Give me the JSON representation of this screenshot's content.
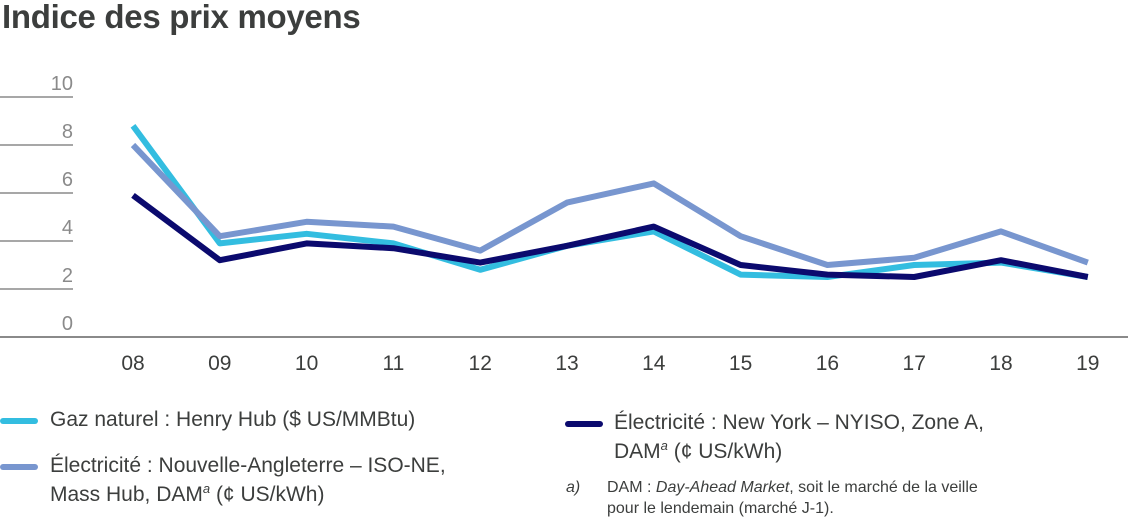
{
  "header": {
    "title": "Indice des prix moyens"
  },
  "chart_data": {
    "type": "line",
    "title": "Indice des prix moyens",
    "xlabel": "",
    "ylabel": "",
    "categories": [
      "08",
      "09",
      "10",
      "11",
      "12",
      "13",
      "14",
      "15",
      "16",
      "17",
      "18",
      "19"
    ],
    "yticks": [
      "0",
      "2",
      "4",
      "6",
      "8",
      "10"
    ],
    "ylim": [
      0,
      10
    ],
    "grid": true,
    "legend_position": "bottom",
    "series": [
      {
        "name": "Gaz naturel : Henry Hub ($ US/MMBtu)",
        "color": "#33bde0",
        "values": [
          8.8,
          3.9,
          4.3,
          3.9,
          2.8,
          3.8,
          4.4,
          2.6,
          2.5,
          3.0,
          3.1,
          2.5
        ]
      },
      {
        "name": "Électricité : Nouvelle-Angleterre – ISO-NE, Mass Hub, DAMa (¢ US/kWh)",
        "color": "#7896cf",
        "values": [
          8.0,
          4.2,
          4.8,
          4.6,
          3.6,
          5.6,
          6.4,
          4.2,
          3.0,
          3.3,
          4.4,
          3.1
        ]
      },
      {
        "name": "Électricité : New York – NYISO, Zone A, DAMa (¢ US/kWh)",
        "color": "#0b0a6e",
        "values": [
          5.9,
          3.2,
          3.9,
          3.7,
          3.1,
          3.8,
          4.6,
          3.0,
          2.6,
          2.5,
          3.2,
          2.5
        ]
      }
    ],
    "annotations": [
      "a) DAM : Day-Ahead Market, soit le marché de la veille pour le lendemain (marché J-1)."
    ]
  },
  "legend": {
    "gas": {
      "line1": "Gaz naturel : Henry Hub ($ US/MMBtu)"
    },
    "isone": {
      "line1": "Électricité : Nouvelle-Angleterre – ISO-NE,",
      "line2_pre": "Mass Hub, DAM",
      "sup": "a",
      "line2_post": " (¢ US/kWh)"
    },
    "nyiso": {
      "line1": "Électricité : New York – NYISO, Zone A,",
      "line2_pre": "DAM",
      "sup": "a",
      "line2_post": " (¢ US/kWh)"
    }
  },
  "footnote": {
    "mark": "a)",
    "pre": "DAM : ",
    "italic": "Day-Ahead Market",
    "post": ", soit le marché de la veille",
    "line2": "pour le lendemain (marché J-1)."
  }
}
